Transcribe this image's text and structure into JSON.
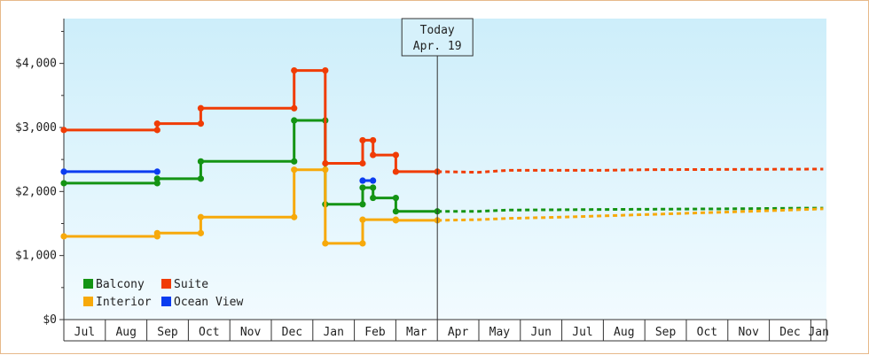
{
  "chart_data": {
    "type": "line",
    "title": "",
    "xlabel": "",
    "ylabel": "",
    "ylim": [
      0,
      4700
    ],
    "y_ticks": [
      {
        "value": 0,
        "label": "$0"
      },
      {
        "value": 1000,
        "label": "$1,000"
      },
      {
        "value": 2000,
        "label": "$2,000"
      },
      {
        "value": 3000,
        "label": "$3,000"
      },
      {
        "value": 4000,
        "label": "$4,000"
      }
    ],
    "x_months": [
      "Jul",
      "Aug",
      "Sep",
      "Oct",
      "Nov",
      "Dec",
      "Jan",
      "Feb",
      "Mar",
      "Apr",
      "May",
      "Jun",
      "Jul",
      "Aug",
      "Sep",
      "Oct",
      "Nov",
      "Dec",
      "Jan"
    ],
    "today": {
      "label_line1": "Today",
      "label_line2": "Apr. 19",
      "x": 9.0
    },
    "legend": {
      "placement": "bottom-left"
    },
    "background_gradient": [
      "#cdeefa",
      "#f2fbff"
    ],
    "series": [
      {
        "name": "Balcony",
        "color": "#149414",
        "points": [
          [
            0,
            2130
          ],
          [
            2.25,
            2130
          ],
          [
            2.25,
            2200
          ],
          [
            3.3,
            2200
          ],
          [
            3.3,
            2470
          ],
          [
            5.55,
            2470
          ],
          [
            5.55,
            3110
          ],
          [
            6.3,
            3110
          ],
          [
            6.3,
            1800
          ],
          [
            7.2,
            1800
          ],
          [
            7.2,
            2060
          ],
          [
            7.45,
            2060
          ],
          [
            7.45,
            1900
          ],
          [
            8.0,
            1900
          ],
          [
            8.0,
            1690
          ],
          [
            9.0,
            1690
          ]
        ],
        "forecast": [
          [
            9.0,
            1690
          ],
          [
            10.0,
            1690
          ],
          [
            10.7,
            1710
          ],
          [
            13.0,
            1720
          ],
          [
            16.0,
            1730
          ],
          [
            17.9,
            1740
          ],
          [
            18.3,
            1740
          ]
        ]
      },
      {
        "name": "Suite",
        "color": "#f03c05",
        "points": [
          [
            0,
            2960
          ],
          [
            2.25,
            2960
          ],
          [
            2.25,
            3060
          ],
          [
            3.3,
            3060
          ],
          [
            3.3,
            3300
          ],
          [
            5.55,
            3300
          ],
          [
            5.55,
            3890
          ],
          [
            6.3,
            3890
          ],
          [
            6.3,
            2440
          ],
          [
            7.2,
            2440
          ],
          [
            7.2,
            2800
          ],
          [
            7.45,
            2800
          ],
          [
            7.45,
            2570
          ],
          [
            8.0,
            2570
          ],
          [
            8.0,
            2310
          ],
          [
            9.0,
            2310
          ]
        ],
        "forecast": [
          [
            9.0,
            2310
          ],
          [
            10.0,
            2300
          ],
          [
            10.7,
            2330
          ],
          [
            13.0,
            2330
          ],
          [
            14.0,
            2340
          ],
          [
            18.3,
            2350
          ]
        ]
      },
      {
        "name": "Interior",
        "color": "#f7a90a",
        "points": [
          [
            0,
            1300
          ],
          [
            2.25,
            1300
          ],
          [
            2.25,
            1350
          ],
          [
            3.3,
            1350
          ],
          [
            3.3,
            1600
          ],
          [
            5.55,
            1600
          ],
          [
            5.55,
            2340
          ],
          [
            6.3,
            2340
          ],
          [
            6.3,
            1190
          ],
          [
            7.2,
            1190
          ],
          [
            7.2,
            1560
          ],
          [
            8.0,
            1560
          ],
          [
            8.0,
            1550
          ],
          [
            9.0,
            1550
          ]
        ],
        "forecast": [
          [
            9.0,
            1550
          ],
          [
            10.0,
            1560
          ],
          [
            10.7,
            1580
          ],
          [
            12.0,
            1600
          ],
          [
            13.0,
            1620
          ],
          [
            14.0,
            1640
          ],
          [
            15.0,
            1660
          ],
          [
            16.0,
            1680
          ],
          [
            17.0,
            1700
          ],
          [
            18.3,
            1730
          ]
        ]
      },
      {
        "name": "Ocean View",
        "color": "#0a3cf0",
        "points": [
          [
            0,
            2310
          ],
          [
            2.25,
            2310
          ]
        ],
        "extra_points": [
          [
            7.2,
            2170
          ],
          [
            7.45,
            2170
          ]
        ],
        "forecast": []
      }
    ]
  }
}
